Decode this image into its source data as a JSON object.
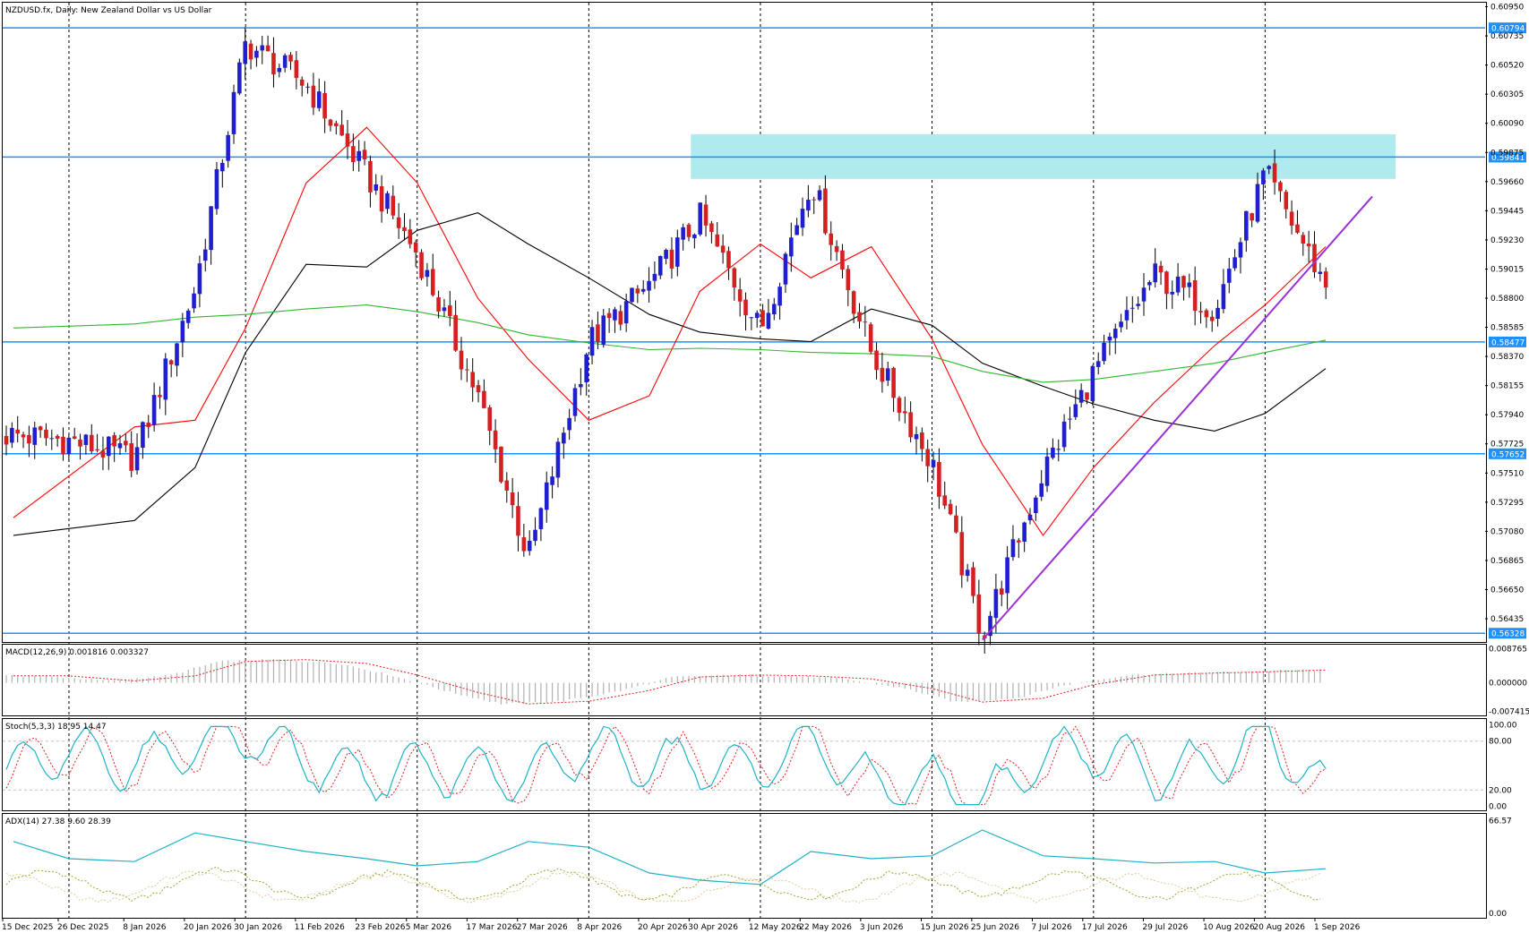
{
  "chart_data": {
    "type": "candlestick",
    "symbol_title": "NZDUSD.fx, Daily:  New Zealand Dollar vs US Dollar",
    "price_axis_ticks": [
      "0.60950",
      "0.60735",
      "0.60520",
      "0.60305",
      "0.60090",
      "0.59875",
      "0.59660",
      "0.59445",
      "0.59230",
      "0.59015",
      "0.58800",
      "0.58585",
      "0.58370",
      "0.58155",
      "0.57940",
      "0.57725",
      "0.57510",
      "0.57295",
      "0.57080",
      "0.56865",
      "0.56650",
      "0.56435"
    ],
    "price_range": [
      0.5627,
      0.6098
    ],
    "horizontal_levels": [
      {
        "price": 0.60794,
        "label": "0.60794"
      },
      {
        "price": 0.59841,
        "label": "0.59841"
      },
      {
        "price": 0.58477,
        "label": "0.58477"
      },
      {
        "price": 0.57652,
        "label": "0.57652"
      },
      {
        "price": 0.56328,
        "label": "0.56328"
      }
    ],
    "resistance_zone": {
      "from_date": "30 Apr 2026",
      "to_date": "1 Sep 2026",
      "price_low": 0.5968,
      "price_high": 0.6001
    },
    "trendline": {
      "from": [
        "25 Jun 2026",
        0.5628
      ],
      "to": [
        "1 Sep 2026",
        0.5955
      ]
    },
    "date_ticks": [
      "15 Dec 2025",
      "26 Dec 2025",
      "8 Jan 2026",
      "20 Jan 2026",
      "30 Jan 2026",
      "11 Feb 2026",
      "23 Feb 2026",
      "5 Mar 2026",
      "17 Mar 2026",
      "27 Mar 2026",
      "8 Apr 2026",
      "20 Apr 2026",
      "30 Apr 2026",
      "12 May 2026",
      "22 May 2026",
      "3 Jun 2026",
      "15 Jun 2026",
      "25 Jun 2026",
      "7 Jul 2026",
      "17 Jul 2026",
      "29 Jul 2026",
      "10 Aug 2026",
      "20 Aug 2026",
      "1 Sep 2026"
    ],
    "vertical_gridlines_at": [
      "26 Dec 2025",
      "30 Jan 2026",
      "5 Mar 2026",
      "8 Apr 2026",
      "12 May 2026",
      "15 Jun 2026",
      "17 Jul 2026",
      "20 Aug 2026"
    ],
    "close_path": [
      [
        "15 Dec 2025",
        0.5779
      ],
      [
        "26 Dec 2025",
        0.5775
      ],
      [
        "8 Jan 2026",
        0.5762
      ],
      [
        "20 Jan 2026",
        0.5888
      ],
      [
        "30 Jan 2026",
        0.6068
      ],
      [
        "11 Feb 2026",
        0.6038
      ],
      [
        "23 Feb 2026",
        0.597
      ],
      [
        "5 Mar 2026",
        0.5913
      ],
      [
        "17 Mar 2026",
        0.5808
      ],
      [
        "27 Mar 2026",
        0.5688
      ],
      [
        "8 Apr 2026",
        0.5848
      ],
      [
        "20 Apr 2026",
        0.589
      ],
      [
        "30 Apr 2026",
        0.594
      ],
      [
        "12 May 2026",
        0.5856
      ],
      [
        "22 May 2026",
        0.5968
      ],
      [
        "3 Jun 2026",
        0.584
      ],
      [
        "15 Jun 2026",
        0.5758
      ],
      [
        "25 Jun 2026",
        0.5632
      ],
      [
        "7 Jul 2026",
        0.5752
      ],
      [
        "17 Jul 2026",
        0.5825
      ],
      [
        "29 Jul 2026",
        0.5897
      ],
      [
        "10 Aug 2026",
        0.5872
      ],
      [
        "20 Aug 2026",
        0.5972
      ],
      [
        "1 Sep 2026",
        0.589
      ]
    ],
    "moving_averages": [
      {
        "color": "#ff0000",
        "points": [
          [
            "15 Dec 2025",
            0.5718
          ],
          [
            "8 Jan 2026",
            0.5785
          ],
          [
            "20 Jan 2026",
            0.579
          ],
          [
            "30 Jan 2026",
            0.5858
          ],
          [
            "11 Feb 2026",
            0.5965
          ],
          [
            "23 Feb 2026",
            0.6006
          ],
          [
            "5 Mar 2026",
            0.5965
          ],
          [
            "17 Mar 2026",
            0.588
          ],
          [
            "27 Mar 2026",
            0.5835
          ],
          [
            "8 Apr 2026",
            0.579
          ],
          [
            "20 Apr 2026",
            0.5808
          ],
          [
            "30 Apr 2026",
            0.5885
          ],
          [
            "12 May 2026",
            0.592
          ],
          [
            "22 May 2026",
            0.5895
          ],
          [
            "3 Jun 2026",
            0.5918
          ],
          [
            "15 Jun 2026",
            0.585
          ],
          [
            "25 Jun 2026",
            0.5772
          ],
          [
            "7 Jul 2026",
            0.5705
          ],
          [
            "17 Jul 2026",
            0.5755
          ],
          [
            "29 Jul 2026",
            0.5803
          ],
          [
            "10 Aug 2026",
            0.5845
          ],
          [
            "20 Aug 2026",
            0.5875
          ],
          [
            "1 Sep 2026",
            0.5918
          ]
        ]
      },
      {
        "color": "#000000",
        "points": [
          [
            "15 Dec 2025",
            0.5705
          ],
          [
            "8 Jan 2026",
            0.5716
          ],
          [
            "20 Jan 2026",
            0.5755
          ],
          [
            "30 Jan 2026",
            0.584
          ],
          [
            "11 Feb 2026",
            0.5905
          ],
          [
            "23 Feb 2026",
            0.5903
          ],
          [
            "5 Mar 2026",
            0.593
          ],
          [
            "17 Mar 2026",
            0.5943
          ],
          [
            "27 Mar 2026",
            0.592
          ],
          [
            "8 Apr 2026",
            0.5895
          ],
          [
            "20 Apr 2026",
            0.5868
          ],
          [
            "30 Apr 2026",
            0.5855
          ],
          [
            "12 May 2026",
            0.585
          ],
          [
            "22 May 2026",
            0.5848
          ],
          [
            "3 Jun 2026",
            0.5872
          ],
          [
            "15 Jun 2026",
            0.586
          ],
          [
            "25 Jun 2026",
            0.5832
          ],
          [
            "7 Jul 2026",
            0.5815
          ],
          [
            "17 Jul 2026",
            0.5802
          ],
          [
            "29 Jul 2026",
            0.579
          ],
          [
            "10 Aug 2026",
            0.5782
          ],
          [
            "20 Aug 2026",
            0.5795
          ],
          [
            "1 Sep 2026",
            0.5828
          ]
        ]
      },
      {
        "color": "#2eb82e",
        "points": [
          [
            "15 Dec 2025",
            0.5858
          ],
          [
            "8 Jan 2026",
            0.5861
          ],
          [
            "20 Jan 2026",
            0.5866
          ],
          [
            "30 Jan 2026",
            0.5868
          ],
          [
            "11 Feb 2026",
            0.5872
          ],
          [
            "23 Feb 2026",
            0.5875
          ],
          [
            "5 Mar 2026",
            0.587
          ],
          [
            "17 Mar 2026",
            0.5862
          ],
          [
            "27 Mar 2026",
            0.5853
          ],
          [
            "8 Apr 2026",
            0.5847
          ],
          [
            "20 Apr 2026",
            0.5842
          ],
          [
            "30 Apr 2026",
            0.5843
          ],
          [
            "12 May 2026",
            0.5842
          ],
          [
            "22 May 2026",
            0.584
          ],
          [
            "3 Jun 2026",
            0.5839
          ],
          [
            "15 Jun 2026",
            0.5837
          ],
          [
            "25 Jun 2026",
            0.5826
          ],
          [
            "7 Jul 2026",
            0.5818
          ],
          [
            "17 Jul 2026",
            0.582
          ],
          [
            "29 Jul 2026",
            0.5826
          ],
          [
            "10 Aug 2026",
            0.5832
          ],
          [
            "20 Aug 2026",
            0.584
          ],
          [
            "1 Sep 2026",
            0.5849
          ]
        ]
      }
    ],
    "macd": {
      "label": "MACD(12,26,9) 0.001816 0.003327",
      "ticks": [
        "0.008765",
        "0.000000",
        "-0.007415"
      ],
      "range": [
        -0.008,
        0.0094
      ],
      "signal_path": [
        [
          "15 Dec 2025",
          0.0018
        ],
        [
          "26 Dec 2025",
          0.0018
        ],
        [
          "8 Jan 2026",
          0.0005
        ],
        [
          "20 Jan 2026",
          0.0018
        ],
        [
          "30 Jan 2026",
          0.0055
        ],
        [
          "11 Feb 2026",
          0.006
        ],
        [
          "23 Feb 2026",
          0.005
        ],
        [
          "5 Mar 2026",
          0.002
        ],
        [
          "17 Mar 2026",
          -0.0025
        ],
        [
          "27 Mar 2026",
          -0.0055
        ],
        [
          "8 Apr 2026",
          -0.0048
        ],
        [
          "20 Apr 2026",
          -0.002
        ],
        [
          "30 Apr 2026",
          0.0015
        ],
        [
          "12 May 2026",
          0.002
        ],
        [
          "22 May 2026",
          0.0018
        ],
        [
          "3 Jun 2026",
          0.001
        ],
        [
          "15 Jun 2026",
          -0.0015
        ],
        [
          "25 Jun 2026",
          -0.005
        ],
        [
          "7 Jul 2026",
          -0.004
        ],
        [
          "17 Jul 2026",
          -0.0005
        ],
        [
          "29 Jul 2026",
          0.002
        ],
        [
          "10 Aug 2026",
          0.0025
        ],
        [
          "20 Aug 2026",
          0.0028
        ],
        [
          "1 Sep 2026",
          0.0033
        ]
      ]
    },
    "stochastic": {
      "label": "Stoch(5,3,3) 18.95 14.47",
      "ticks": [
        "100.00",
        "80.00",
        "20.00",
        "0.00"
      ],
      "range": [
        -5,
        105
      ],
      "main_path": [
        [
          "15 Dec 2025",
          45
        ],
        [
          "26 Dec 2025",
          70
        ],
        [
          "8 Jan 2026",
          50
        ],
        [
          "20 Jan 2026",
          75
        ],
        [
          "30 Jan 2026",
          88
        ],
        [
          "11 Feb 2026",
          55
        ],
        [
          "23 Feb 2026",
          35
        ],
        [
          "5 Mar 2026",
          50
        ],
        [
          "17 Mar 2026",
          40
        ],
        [
          "27 Mar 2026",
          35
        ],
        [
          "8 Apr 2026",
          70
        ],
        [
          "20 Apr 2026",
          52
        ],
        [
          "30 Apr 2026",
          55
        ],
        [
          "12 May 2026",
          45
        ],
        [
          "22 May 2026",
          80
        ],
        [
          "3 Jun 2026",
          25
        ],
        [
          "15 Jun 2026",
          30
        ],
        [
          "25 Jun 2026",
          5
        ],
        [
          "7 Jul 2026",
          60
        ],
        [
          "17 Jul 2026",
          70
        ],
        [
          "29 Jul 2026",
          40
        ],
        [
          "10 Aug 2026",
          52
        ],
        [
          "20 Aug 2026",
          88
        ],
        [
          "1 Sep 2026",
          19
        ]
      ]
    },
    "adx": {
      "label": "ADX(14) 27.38 9.60 28.39",
      "ticks": [
        "66.57",
        "0.00"
      ],
      "range": [
        0,
        70
      ],
      "adx_path": [
        [
          "15 Dec 2025",
          52
        ],
        [
          "26 Dec 2025",
          40
        ],
        [
          "8 Jan 2026",
          38
        ],
        [
          "20 Jan 2026",
          58
        ],
        [
          "30 Jan 2026",
          52
        ],
        [
          "11 Feb 2026",
          45
        ],
        [
          "23 Feb 2026",
          40
        ],
        [
          "5 Mar 2026",
          35
        ],
        [
          "17 Mar 2026",
          38
        ],
        [
          "27 Mar 2026",
          52
        ],
        [
          "8 Apr 2026",
          48
        ],
        [
          "20 Apr 2026",
          30
        ],
        [
          "30 Apr 2026",
          25
        ],
        [
          "12 May 2026",
          22
        ],
        [
          "22 May 2026",
          45
        ],
        [
          "3 Jun 2026",
          40
        ],
        [
          "15 Jun 2026",
          42
        ],
        [
          "25 Jun 2026",
          60
        ],
        [
          "7 Jul 2026",
          42
        ],
        [
          "17 Jul 2026",
          40
        ],
        [
          "29 Jul 2026",
          37
        ],
        [
          "10 Aug 2026",
          38
        ],
        [
          "20 Aug 2026",
          30
        ],
        [
          "1 Sep 2026",
          33
        ]
      ]
    }
  }
}
